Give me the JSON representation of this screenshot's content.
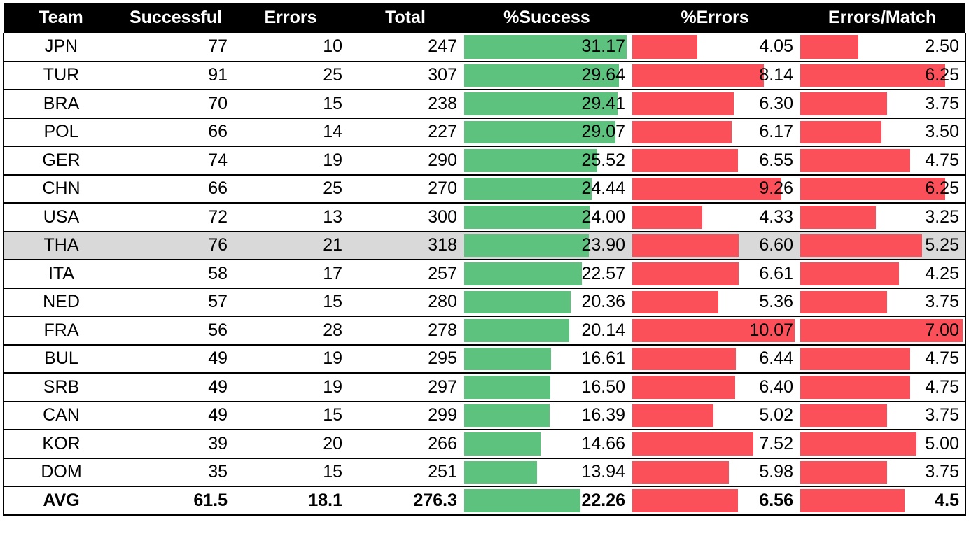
{
  "chart_data": {
    "type": "table",
    "columns": [
      "Team",
      "Successful",
      "Errors",
      "Total",
      "%Success",
      "%Errors",
      "Errors/Match"
    ],
    "rows": [
      {
        "team": "JPN",
        "successful": "77",
        "errors": "10",
        "total": "247",
        "pct_success": "31.17",
        "pct_errors": "4.05",
        "errors_per_match": "2.50"
      },
      {
        "team": "TUR",
        "successful": "91",
        "errors": "25",
        "total": "307",
        "pct_success": "29.64",
        "pct_errors": "8.14",
        "errors_per_match": "6.25"
      },
      {
        "team": "BRA",
        "successful": "70",
        "errors": "15",
        "total": "238",
        "pct_success": "29.41",
        "pct_errors": "6.30",
        "errors_per_match": "3.75"
      },
      {
        "team": "POL",
        "successful": "66",
        "errors": "14",
        "total": "227",
        "pct_success": "29.07",
        "pct_errors": "6.17",
        "errors_per_match": "3.50"
      },
      {
        "team": "GER",
        "successful": "74",
        "errors": "19",
        "total": "290",
        "pct_success": "25.52",
        "pct_errors": "6.55",
        "errors_per_match": "4.75"
      },
      {
        "team": "CHN",
        "successful": "66",
        "errors": "25",
        "total": "270",
        "pct_success": "24.44",
        "pct_errors": "9.26",
        "errors_per_match": "6.25"
      },
      {
        "team": "USA",
        "successful": "72",
        "errors": "13",
        "total": "300",
        "pct_success": "24.00",
        "pct_errors": "4.33",
        "errors_per_match": "3.25"
      },
      {
        "team": "THA",
        "successful": "76",
        "errors": "21",
        "total": "318",
        "pct_success": "23.90",
        "pct_errors": "6.60",
        "errors_per_match": "5.25",
        "highlight": true
      },
      {
        "team": "ITA",
        "successful": "58",
        "errors": "17",
        "total": "257",
        "pct_success": "22.57",
        "pct_errors": "6.61",
        "errors_per_match": "4.25"
      },
      {
        "team": "NED",
        "successful": "57",
        "errors": "15",
        "total": "280",
        "pct_success": "20.36",
        "pct_errors": "5.36",
        "errors_per_match": "3.75"
      },
      {
        "team": "FRA",
        "successful": "56",
        "errors": "28",
        "total": "278",
        "pct_success": "20.14",
        "pct_errors": "10.07",
        "errors_per_match": "7.00"
      },
      {
        "team": "BUL",
        "successful": "49",
        "errors": "19",
        "total": "295",
        "pct_success": "16.61",
        "pct_errors": "6.44",
        "errors_per_match": "4.75"
      },
      {
        "team": "SRB",
        "successful": "49",
        "errors": "19",
        "total": "297",
        "pct_success": "16.50",
        "pct_errors": "6.40",
        "errors_per_match": "4.75"
      },
      {
        "team": "CAN",
        "successful": "49",
        "errors": "15",
        "total": "299",
        "pct_success": "16.39",
        "pct_errors": "5.02",
        "errors_per_match": "3.75"
      },
      {
        "team": "KOR",
        "successful": "39",
        "errors": "20",
        "total": "266",
        "pct_success": "14.66",
        "pct_errors": "7.52",
        "errors_per_match": "5.00"
      },
      {
        "team": "DOM",
        "successful": "35",
        "errors": "15",
        "total": "251",
        "pct_success": "13.94",
        "pct_errors": "5.98",
        "errors_per_match": "3.75"
      }
    ],
    "average": {
      "team": "AVG",
      "successful": "61.5",
      "errors": "18.1",
      "total": "276.3",
      "pct_success": "22.26",
      "pct_errors": "6.56",
      "errors_per_match": "4.5"
    },
    "bar_max": {
      "pct_success": 31.17,
      "pct_errors": 10.07,
      "errors_per_match": 7.0
    },
    "colors": {
      "header_bg": "#000000",
      "success_bar": "#5cc27e",
      "error_bar": "#fb4f5a",
      "highlight_row": "#d9d9d9"
    }
  }
}
